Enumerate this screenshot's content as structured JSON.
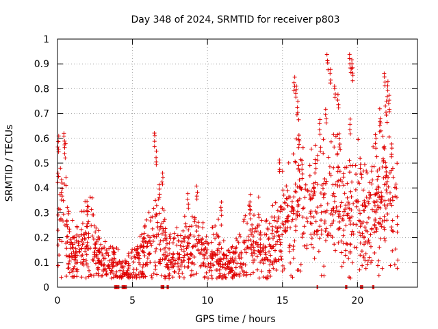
{
  "chart_data": {
    "type": "scatter",
    "title": "Day 348 of 2024, SRMTID for receiver p803",
    "xlabel": "GPS time / hours",
    "ylabel": "SRMTID / TECUs",
    "xlim": [
      0,
      24
    ],
    "ylim": [
      0,
      1
    ],
    "x_ticks": [
      0,
      5,
      10,
      15,
      20
    ],
    "x_tick_labels": [
      "0",
      "5",
      "10",
      "15",
      "20"
    ],
    "y_ticks": [
      0,
      0.1,
      0.2,
      0.3,
      0.4,
      0.5,
      0.6,
      0.7,
      0.8,
      0.9,
      1
    ],
    "y_tick_labels": [
      "0",
      "0.1",
      "0.2",
      "0.3",
      "0.4",
      "0.5",
      "0.6",
      "0.7",
      "0.8",
      "0.9",
      "1"
    ],
    "grid": true,
    "marker": "+",
    "color": "#e00000",
    "series": [
      {
        "name": "SRMTID",
        "profile": [
          [
            0.0,
            0.28
          ],
          [
            0.4,
            0.3
          ],
          [
            0.8,
            0.15
          ],
          [
            1.2,
            0.12
          ],
          [
            1.6,
            0.17
          ],
          [
            2.0,
            0.18
          ],
          [
            2.3,
            0.25
          ],
          [
            2.6,
            0.12
          ],
          [
            3.0,
            0.1
          ],
          [
            3.5,
            0.1
          ],
          [
            4.0,
            0.08
          ],
          [
            4.5,
            0.05
          ],
          [
            5.0,
            0.08
          ],
          [
            5.5,
            0.1
          ],
          [
            6.0,
            0.14
          ],
          [
            6.5,
            0.2
          ],
          [
            7.0,
            0.18
          ],
          [
            7.5,
            0.12
          ],
          [
            8.0,
            0.11
          ],
          [
            8.5,
            0.15
          ],
          [
            9.0,
            0.17
          ],
          [
            9.5,
            0.15
          ],
          [
            10.0,
            0.12
          ],
          [
            10.5,
            0.15
          ],
          [
            11.0,
            0.1
          ],
          [
            11.5,
            0.09
          ],
          [
            12.0,
            0.1
          ],
          [
            12.5,
            0.15
          ],
          [
            13.0,
            0.2
          ],
          [
            13.5,
            0.2
          ],
          [
            14.0,
            0.14
          ],
          [
            14.5,
            0.18
          ],
          [
            15.0,
            0.24
          ],
          [
            15.5,
            0.32
          ],
          [
            16.0,
            0.37
          ],
          [
            16.5,
            0.3
          ],
          [
            17.0,
            0.3
          ],
          [
            17.5,
            0.32
          ],
          [
            18.0,
            0.34
          ],
          [
            18.5,
            0.36
          ],
          [
            19.0,
            0.32
          ],
          [
            19.5,
            0.3
          ],
          [
            20.0,
            0.3
          ],
          [
            20.5,
            0.28
          ],
          [
            21.0,
            0.3
          ],
          [
            21.5,
            0.38
          ],
          [
            22.0,
            0.38
          ],
          [
            22.5,
            0.3
          ],
          [
            22.7,
            0.28
          ]
        ],
        "spikes": [
          [
            0.05,
            0.61
          ],
          [
            0.3,
            0.44
          ],
          [
            0.45,
            0.63
          ],
          [
            0.5,
            0.58
          ],
          [
            2.0,
            0.35
          ],
          [
            6.5,
            0.63
          ],
          [
            6.6,
            0.55
          ],
          [
            6.8,
            0.42
          ],
          [
            7.0,
            0.47
          ],
          [
            8.7,
            0.38
          ],
          [
            9.3,
            0.41
          ],
          [
            10.9,
            0.35
          ],
          [
            12.8,
            0.35
          ],
          [
            14.8,
            0.52
          ],
          [
            15.8,
            0.85
          ],
          [
            15.9,
            0.82
          ],
          [
            16.0,
            0.75
          ],
          [
            16.1,
            0.62
          ],
          [
            16.3,
            0.52
          ],
          [
            17.2,
            0.52
          ],
          [
            17.5,
            0.68
          ],
          [
            17.9,
            0.72
          ],
          [
            18.0,
            0.94
          ],
          [
            18.2,
            0.88
          ],
          [
            18.5,
            0.82
          ],
          [
            18.7,
            0.78
          ],
          [
            18.8,
            0.62
          ],
          [
            19.5,
            0.94
          ],
          [
            19.6,
            0.92
          ],
          [
            19.7,
            0.89
          ],
          [
            19.5,
            0.68
          ],
          [
            20.2,
            0.52
          ],
          [
            21.2,
            0.62
          ],
          [
            21.5,
            0.69
          ],
          [
            21.8,
            0.87
          ],
          [
            21.9,
            0.75
          ],
          [
            22.0,
            0.83
          ],
          [
            22.1,
            0.78
          ],
          [
            22.3,
            0.58
          ],
          [
            21.9,
            0.51
          ]
        ],
        "zero_intervals": [
          [
            3.8,
            4.1
          ],
          [
            4.3,
            4.6
          ],
          [
            6.9,
            7.1
          ],
          [
            7.3,
            7.4
          ],
          [
            17.3,
            17.4
          ],
          [
            19.2,
            19.3
          ],
          [
            20.2,
            20.4
          ],
          [
            21.0,
            21.1
          ]
        ]
      }
    ]
  }
}
